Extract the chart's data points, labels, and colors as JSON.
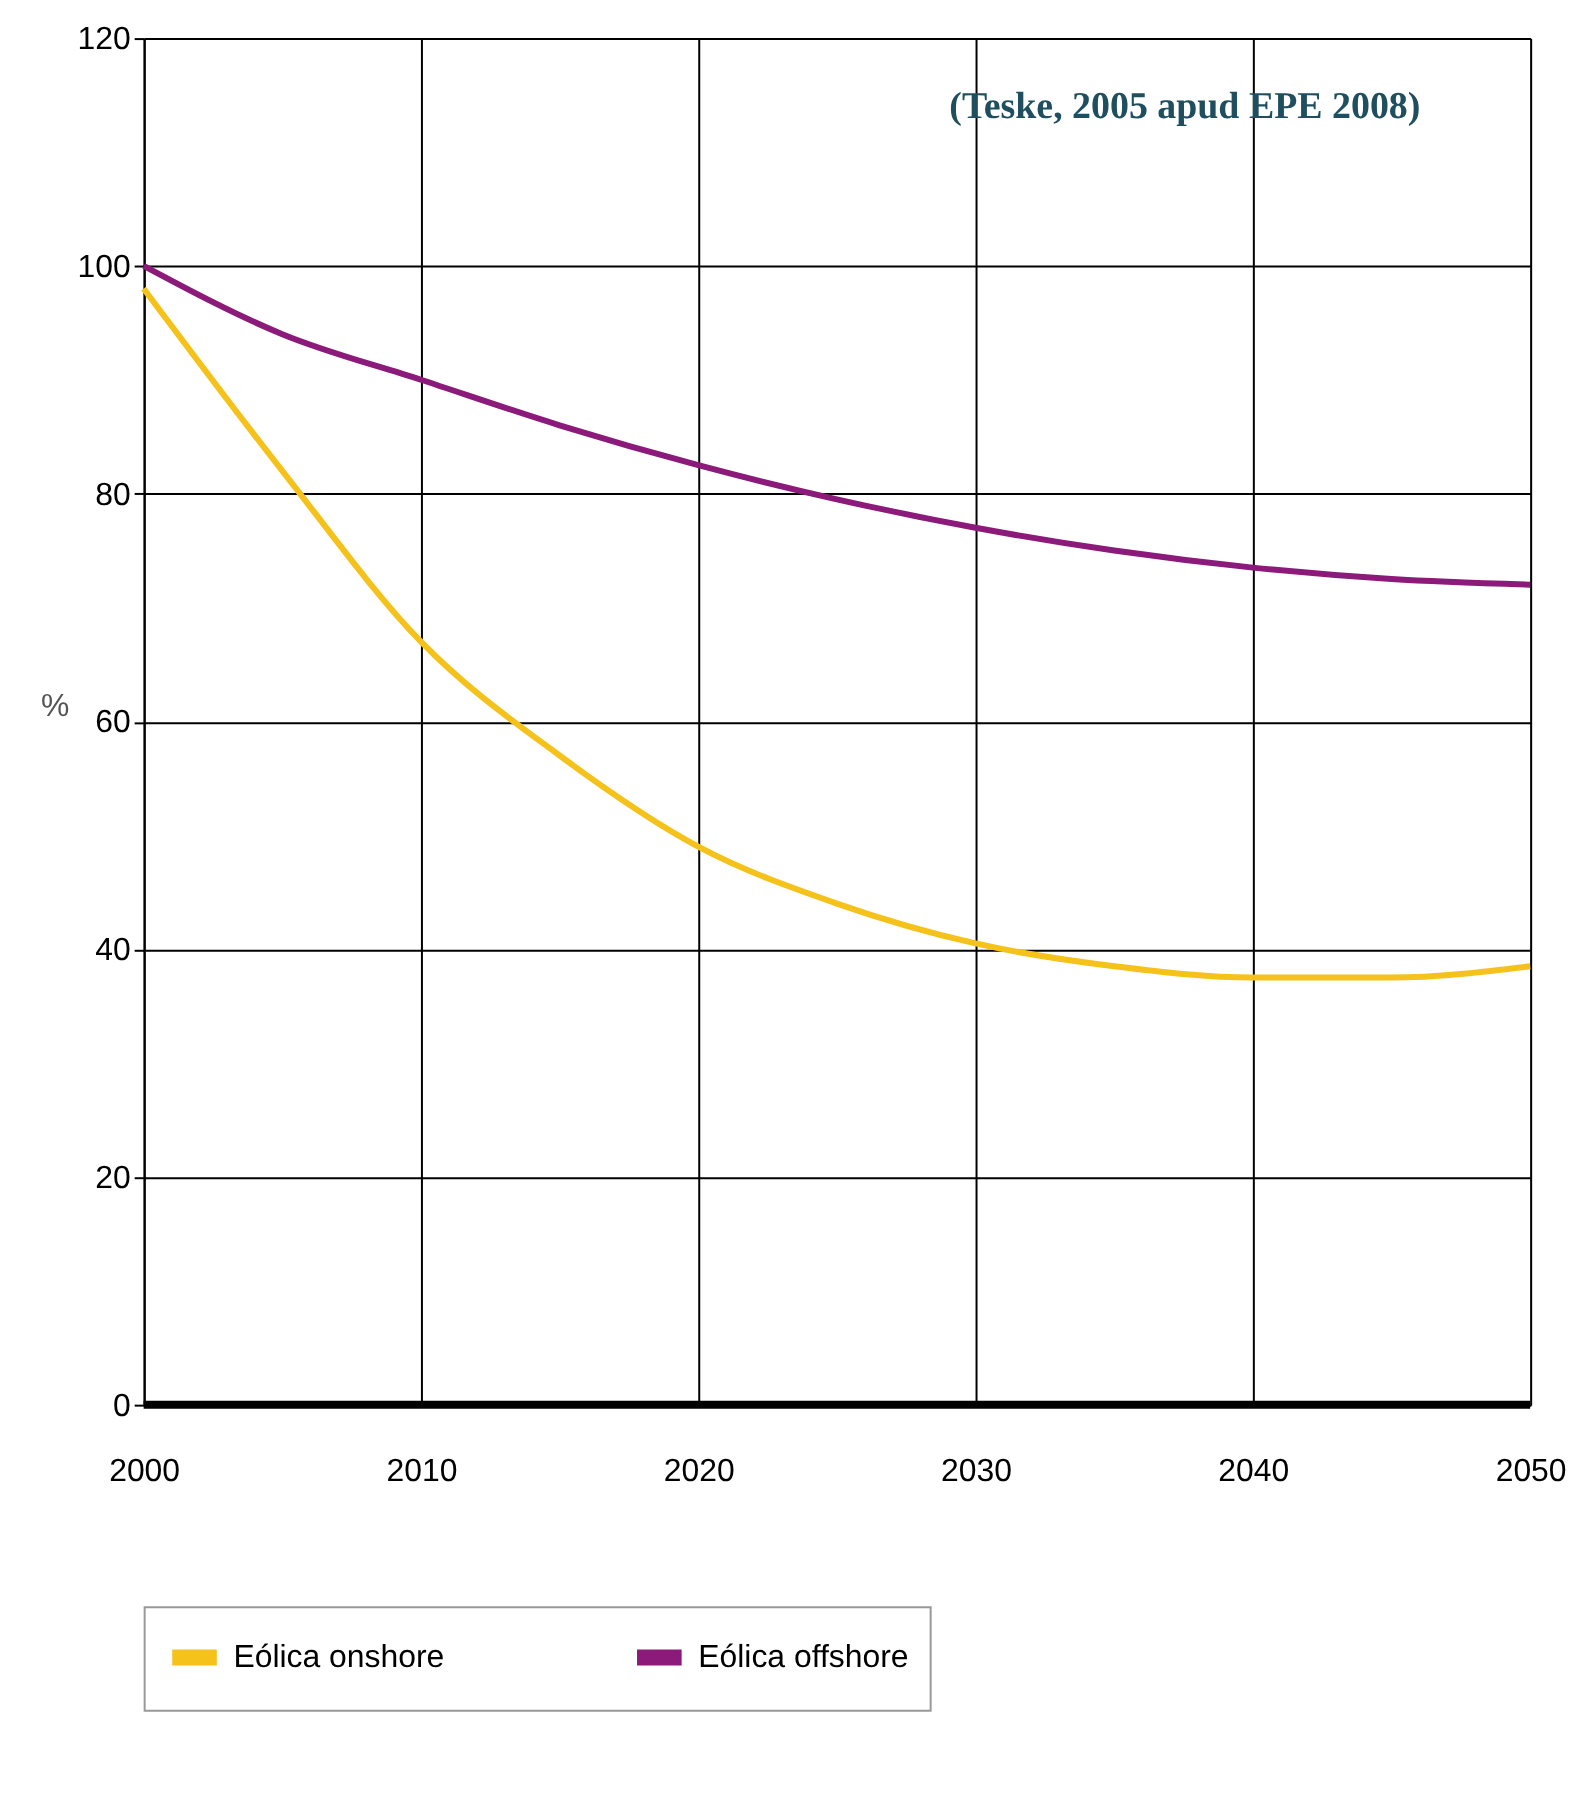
{
  "chart_data": {
    "type": "line",
    "ylabel": "%",
    "x": [
      2000,
      2005,
      2010,
      2015,
      2020,
      2025,
      2030,
      2035,
      2040,
      2045,
      2050
    ],
    "series": [
      {
        "name": "Eólica onshore",
        "color": "#f5c21b",
        "values": [
          98,
          82,
          67,
          57,
          49,
          44,
          40.5,
          38.5,
          37.5,
          37.5,
          38.5
        ]
      },
      {
        "name": "Eólica offshore",
        "color": "#8b1a7a",
        "values": [
          100,
          94,
          90,
          86,
          82.5,
          79.5,
          77,
          75,
          73.5,
          72.5,
          72
        ]
      }
    ],
    "xlim": [
      2000,
      2050
    ],
    "xticks": [
      2000,
      2010,
      2020,
      2030,
      2040,
      2050
    ],
    "ylim": [
      0,
      120
    ],
    "yticks": [
      0,
      20,
      40,
      60,
      80,
      100,
      120
    ],
    "grid": true,
    "legend": "bottom",
    "marker": "none",
    "line_style": "solid",
    "annotations": [
      {
        "text": "(Teske, 2005 apud EPE 2008)"
      }
    ]
  }
}
